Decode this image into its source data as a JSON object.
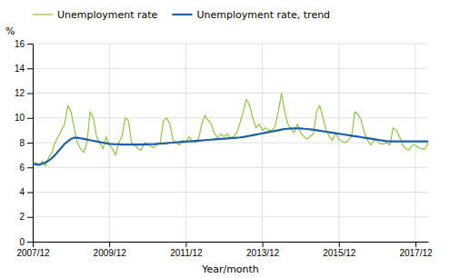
{
  "chart_data": {
    "type": "line",
    "xlabel": "Year/month",
    "ylabel": "%",
    "categories": [
      "2007/12",
      null,
      null,
      null,
      null,
      null,
      null,
      null,
      null,
      null,
      null,
      null,
      null,
      null,
      null,
      null,
      null,
      null,
      null,
      null,
      null,
      null,
      null,
      null,
      "2009/12",
      null,
      null,
      null,
      null,
      null,
      null,
      null,
      null,
      null,
      null,
      null,
      null,
      null,
      null,
      null,
      null,
      null,
      null,
      null,
      null,
      null,
      null,
      null,
      "2011/12",
      null,
      null,
      null,
      null,
      null,
      null,
      null,
      null,
      null,
      null,
      null,
      null,
      null,
      null,
      null,
      null,
      null,
      null,
      null,
      null,
      null,
      null,
      null,
      "2013/12",
      null,
      null,
      null,
      null,
      null,
      null,
      null,
      null,
      null,
      null,
      null,
      null,
      null,
      null,
      null,
      null,
      null,
      null,
      null,
      null,
      null,
      null,
      null,
      "2015/12",
      null,
      null,
      null,
      null,
      null,
      null,
      null,
      null,
      null,
      null,
      null,
      null,
      null,
      null,
      null,
      null,
      null,
      null,
      null,
      null,
      null,
      null,
      null,
      "2017/12",
      null,
      null,
      null,
      null
    ],
    "series": [
      {
        "name": "Unemployment rate",
        "color": "#8dc63f",
        "values": [
          6.3,
          6.4,
          6.2,
          6.5,
          6.1,
          6.8,
          7.2,
          8.0,
          8.5,
          9.0,
          9.5,
          11.0,
          10.5,
          9.2,
          8.0,
          7.5,
          7.2,
          8.0,
          10.5,
          10.0,
          8.5,
          8.0,
          7.5,
          8.5,
          7.8,
          7.5,
          7.0,
          8.0,
          8.5,
          10.0,
          9.8,
          8.0,
          7.8,
          7.5,
          7.4,
          8.0,
          7.9,
          7.7,
          7.6,
          7.9,
          8.0,
          9.8,
          10.0,
          9.5,
          8.2,
          8.0,
          7.8,
          8.2,
          8.0,
          8.5,
          8.1,
          8.0,
          8.3,
          9.5,
          10.2,
          9.8,
          9.5,
          8.7,
          8.4,
          8.7,
          8.5,
          8.7,
          8.4,
          8.5,
          8.8,
          9.6,
          10.5,
          11.5,
          11.0,
          10.0,
          9.2,
          9.5,
          9.0,
          9.2,
          9.0,
          9.0,
          9.3,
          10.5,
          12.0,
          10.5,
          9.5,
          9.1,
          8.8,
          9.5,
          8.8,
          8.5,
          8.3,
          8.5,
          8.7,
          10.5,
          11.0,
          10.0,
          9.0,
          8.5,
          8.2,
          8.8,
          8.3,
          8.1,
          8.0,
          8.2,
          8.5,
          10.5,
          10.3,
          9.8,
          8.8,
          8.2,
          7.8,
          8.2,
          8.2,
          7.9,
          7.9,
          8.0,
          7.8,
          9.2,
          9.0,
          8.5,
          7.8,
          7.5,
          7.4,
          7.8,
          7.8,
          7.6,
          7.5,
          7.5,
          8.0
        ]
      },
      {
        "name": "Unemployment rate, trend",
        "color": "#1f5fa6",
        "values": [
          6.3,
          6.25,
          6.2,
          6.3,
          6.4,
          6.55,
          6.75,
          7.0,
          7.3,
          7.6,
          7.9,
          8.1,
          8.3,
          8.4,
          8.4,
          8.35,
          8.3,
          8.25,
          8.2,
          8.15,
          8.1,
          8.05,
          8.0,
          7.95,
          7.9,
          7.88,
          7.87,
          7.86,
          7.85,
          7.84,
          7.84,
          7.84,
          7.84,
          7.84,
          7.84,
          7.85,
          7.86,
          7.87,
          7.88,
          7.9,
          7.92,
          7.94,
          7.96,
          7.98,
          8.0,
          8.02,
          8.04,
          8.06,
          8.08,
          8.1,
          8.12,
          8.14,
          8.16,
          8.18,
          8.2,
          8.22,
          8.24,
          8.26,
          8.28,
          8.3,
          8.32,
          8.34,
          8.36,
          8.38,
          8.4,
          8.42,
          8.45,
          8.5,
          8.55,
          8.6,
          8.65,
          8.7,
          8.75,
          8.8,
          8.85,
          8.9,
          8.95,
          9.0,
          9.05,
          9.1,
          9.12,
          9.14,
          9.15,
          9.15,
          9.14,
          9.12,
          9.1,
          9.07,
          9.04,
          9.0,
          8.96,
          8.92,
          8.88,
          8.84,
          8.8,
          8.76,
          8.72,
          8.68,
          8.64,
          8.6,
          8.56,
          8.52,
          8.48,
          8.44,
          8.4,
          8.36,
          8.32,
          8.28,
          8.24,
          8.2,
          8.16,
          8.12,
          8.1,
          8.1,
          8.1,
          8.1,
          8.1,
          8.1,
          8.1,
          8.1,
          8.1,
          8.1,
          8.1,
          8.1,
          8.1
        ]
      }
    ],
    "ylim": [
      0,
      16
    ],
    "yticks": [
      0,
      2,
      4,
      6,
      8,
      10,
      12,
      14,
      16
    ],
    "grid": true,
    "legend": "upper left"
  }
}
